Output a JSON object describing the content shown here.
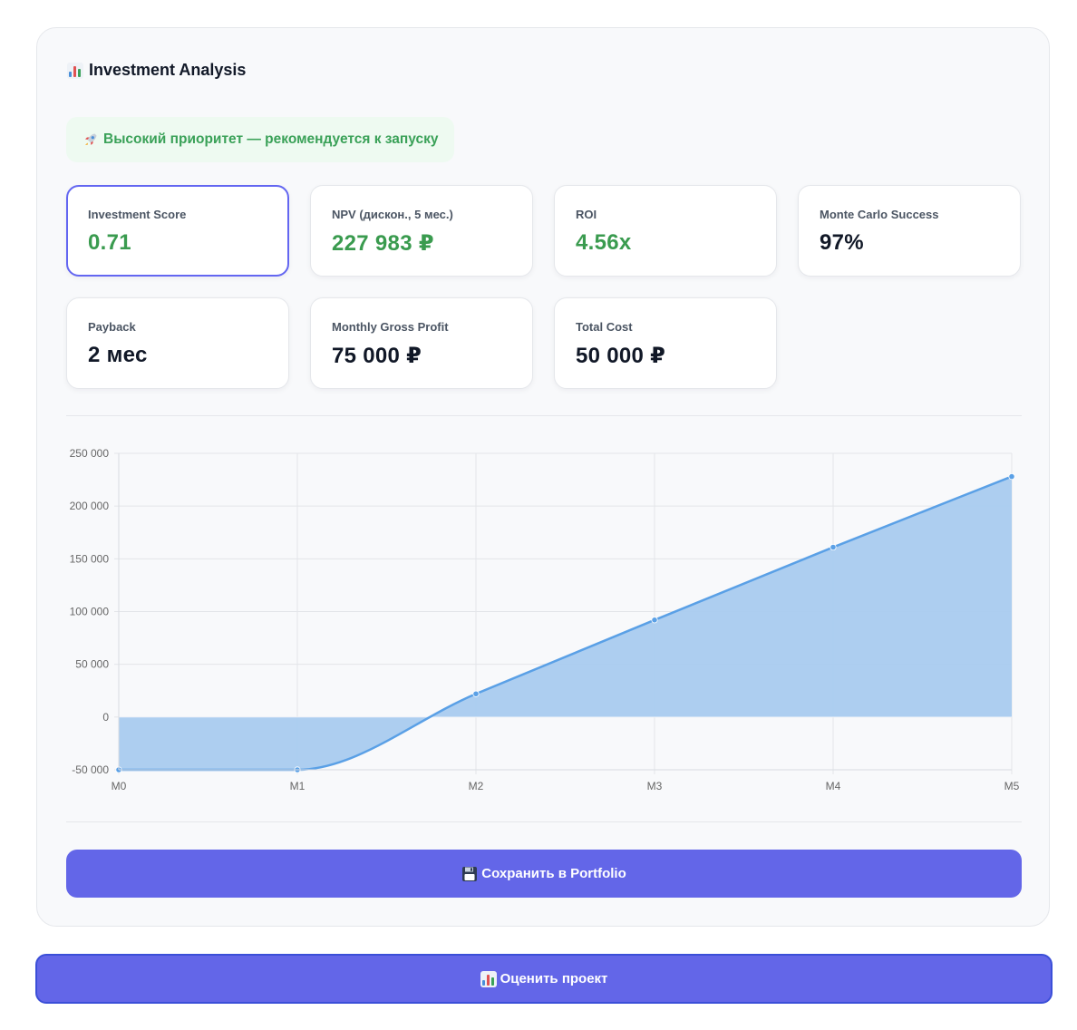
{
  "panel": {
    "title": "Investment Analysis",
    "title_icon": "bar-chart-icon",
    "priority_badge": {
      "icon": "rocket-icon",
      "text": "Высокий приоритет — рекомендуется к запуску",
      "color": "#3aa158"
    }
  },
  "metrics": [
    {
      "label": "Investment Score",
      "value": "0.71",
      "color": "#3a9b4f",
      "highlight": true
    },
    {
      "label": "NPV (дискон., 5 мес.)",
      "value": "227 983 ₽",
      "color": "#3a9b4f"
    },
    {
      "label": "ROI",
      "value": "4.56x",
      "color": "#3a9b4f"
    },
    {
      "label": "Monte Carlo Success",
      "value": "97%",
      "color": "#111827"
    },
    {
      "label": "Payback",
      "value": "2 мес",
      "color": "#111827"
    },
    {
      "label": "Monthly Gross Profit",
      "value": "75 000 ₽",
      "color": "#111827"
    },
    {
      "label": "Total Cost",
      "value": "50 000 ₽",
      "color": "#111827"
    }
  ],
  "chart_data": {
    "type": "area",
    "categories": [
      "M0",
      "M1",
      "M2",
      "M3",
      "M4",
      "M5"
    ],
    "series": [
      {
        "values": [
          -50000,
          -50000,
          22000,
          92000,
          161000,
          228000
        ]
      }
    ],
    "ylim": [
      -50000,
      250000
    ],
    "yticks": [
      -50000,
      0,
      50000,
      100000,
      150000,
      200000,
      250000
    ],
    "ytick_labels": [
      "-50 000",
      "0",
      "50 000",
      "100 000",
      "150 000",
      "200 000",
      "250 000"
    ],
    "grid": true,
    "line_color": "#5aa0e6",
    "fill_color": "#a9cbef"
  },
  "actions": {
    "save_label": "Сохранить в Portfolio",
    "save_icon": "floppy-disk-icon",
    "evaluate_label": "Оценить проект",
    "evaluate_icon": "bar-chart-icon"
  }
}
